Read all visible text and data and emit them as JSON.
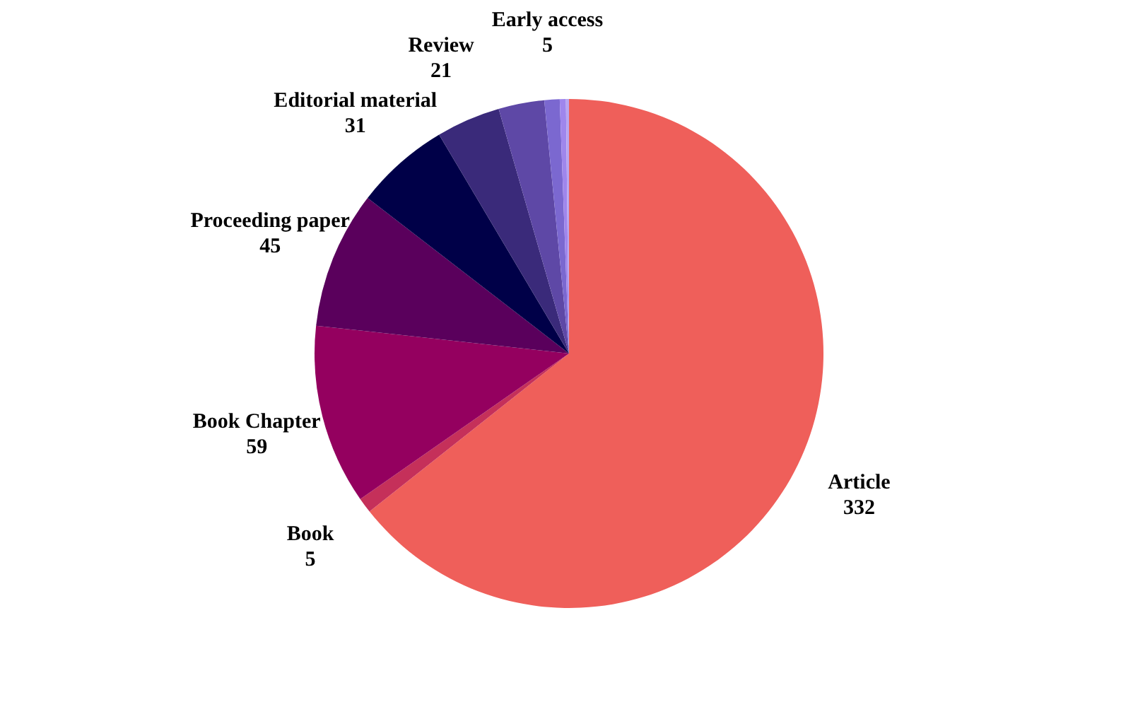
{
  "chart_data": {
    "type": "pie",
    "categories": [
      "Article",
      "Book",
      "Book Chapter",
      "Proceeding paper",
      "Editorial material",
      "Review",
      null,
      "Early access",
      null,
      null
    ],
    "values": [
      332,
      5,
      59,
      45,
      31,
      21,
      15,
      5,
      2,
      1
    ],
    "colors": [
      "#ef5f5a",
      "#c5305a",
      "#94005f",
      "#5a005c",
      "#000048",
      "#3a2a7a",
      "#5e48a6",
      "#7b68d0",
      "#9f86ec",
      "#b8a6f0"
    ],
    "value_labels": [
      "332",
      "5",
      "59",
      "45",
      "31",
      "21",
      null,
      "5",
      null,
      null
    ]
  }
}
